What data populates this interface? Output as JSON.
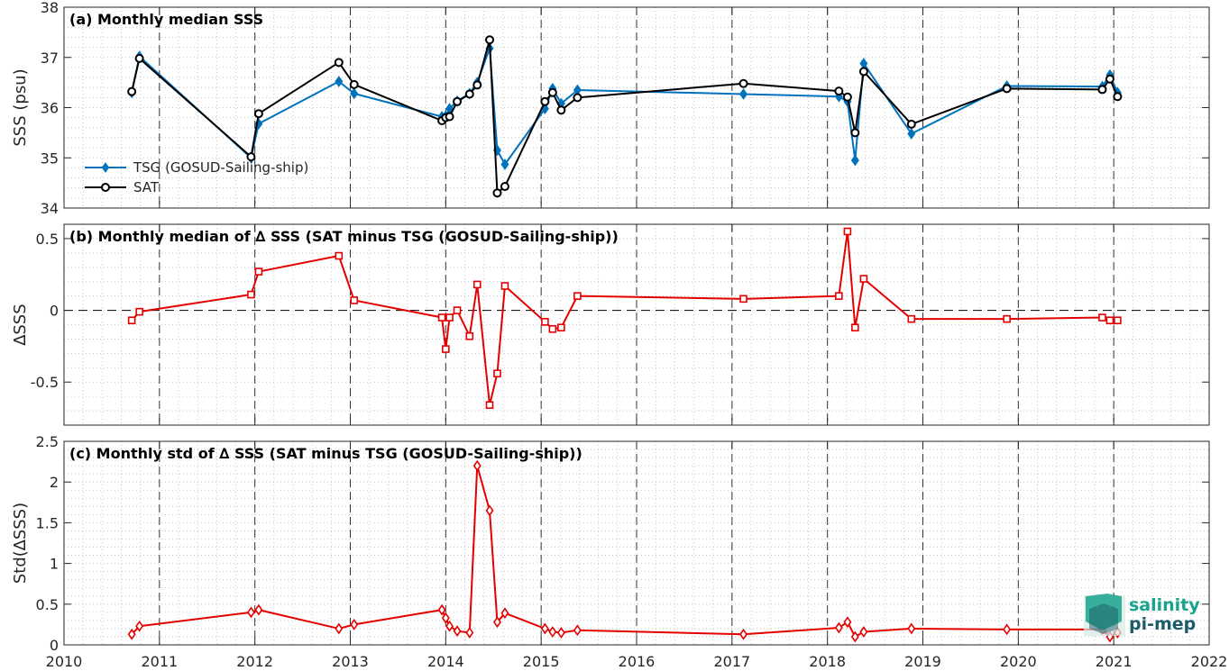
{
  "colors": {
    "tsg": "#0072BD",
    "sat": "#000000",
    "delta": "#E50000",
    "grid_major": "#262626",
    "logo_teal": "#1AA38C",
    "logo_dark": "#1C5B68"
  },
  "logo": {
    "line1": "salinity",
    "line2": "pi-mep"
  },
  "x_axis": {
    "range": [
      2010,
      2022
    ],
    "ticks": [
      2010,
      2011,
      2012,
      2013,
      2014,
      2015,
      2016,
      2017,
      2018,
      2019,
      2020,
      2021,
      2022
    ],
    "tick_labels": [
      "2010",
      "2011",
      "2012",
      "2013",
      "2014",
      "2015",
      "2016",
      "2017",
      "2018",
      "2019",
      "2020",
      "2021",
      "2022"
    ],
    "vertical_dashed_years": [
      2011,
      2012,
      2013,
      2014,
      2015,
      2016,
      2017,
      2018,
      2019,
      2020,
      2021
    ]
  },
  "chart_data": [
    {
      "type": "line",
      "title": "(a) Monthly median SSS",
      "ylabel": "SSS (psu)",
      "ylim": [
        34,
        38
      ],
      "yticks": [
        34,
        35,
        36,
        37,
        38
      ],
      "ytick_labels": [
        "34",
        "35",
        "36",
        "37",
        "38"
      ],
      "grid": "minor dotted",
      "legend_position": "left",
      "series": [
        {
          "name": "TSG (GOSUD-Sailing-ship)",
          "marker": "diamond",
          "color": "#0072BD",
          "x": [
            2010.71,
            2010.79,
            2011.96,
            2012.04,
            2012.88,
            2013.04,
            2013.96,
            2014.0,
            2014.04,
            2014.12,
            2014.25,
            2014.33,
            2014.46,
            2014.54,
            2014.62,
            2015.04,
            2015.12,
            2015.21,
            2015.38,
            2017.12,
            2018.12,
            2018.21,
            2018.29,
            2018.38,
            2018.88,
            2019.88,
            2020.88,
            2020.96,
            2021.04
          ],
          "y": [
            36.3,
            37.02,
            35.0,
            35.68,
            36.52,
            36.28,
            35.82,
            35.83,
            35.98,
            36.13,
            36.28,
            36.5,
            37.18,
            35.15,
            34.87,
            35.98,
            36.38,
            36.08,
            36.35,
            36.27,
            36.22,
            36.12,
            34.95,
            36.88,
            35.48,
            36.43,
            36.42,
            36.65,
            36.3
          ]
        },
        {
          "name": "SAT",
          "marker": "circle",
          "color": "#000000",
          "x": [
            2010.71,
            2010.79,
            2011.96,
            2012.04,
            2012.88,
            2013.04,
            2013.96,
            2014.0,
            2014.04,
            2014.12,
            2014.25,
            2014.33,
            2014.46,
            2014.54,
            2014.62,
            2015.04,
            2015.12,
            2015.21,
            2015.38,
            2017.12,
            2018.12,
            2018.21,
            2018.29,
            2018.38,
            2018.88,
            2019.88,
            2020.88,
            2020.96,
            2021.04
          ],
          "y": [
            36.32,
            36.98,
            35.02,
            35.88,
            36.9,
            36.46,
            35.74,
            35.8,
            35.82,
            36.12,
            36.27,
            36.45,
            37.35,
            34.3,
            34.43,
            36.12,
            36.3,
            35.95,
            36.2,
            36.48,
            36.33,
            36.21,
            35.5,
            36.72,
            35.67,
            36.38,
            36.36,
            36.57,
            36.22
          ]
        }
      ]
    },
    {
      "type": "line",
      "title": "(b) Monthly median of ∆ SSS (SAT minus TSG (GOSUD-Sailing-ship))",
      "ylabel": "∆SSS",
      "ylim": [
        -0.8,
        0.6
      ],
      "yticks": [
        -0.5,
        0,
        0.5
      ],
      "ytick_labels": [
        "-0.5",
        "0",
        "0.5"
      ],
      "zero_line": "dashed",
      "grid": "minor dotted",
      "series": [
        {
          "name": "",
          "marker": "square",
          "color": "#E50000",
          "x": [
            2010.71,
            2010.79,
            2011.96,
            2012.04,
            2012.88,
            2013.04,
            2013.96,
            2014.0,
            2014.04,
            2014.12,
            2014.25,
            2014.33,
            2014.46,
            2014.54,
            2014.62,
            2015.04,
            2015.12,
            2015.21,
            2015.38,
            2017.12,
            2018.12,
            2018.21,
            2018.29,
            2018.38,
            2018.88,
            2019.88,
            2020.88,
            2020.96,
            2021.04
          ],
          "y": [
            -0.07,
            -0.01,
            0.11,
            0.27,
            0.38,
            0.07,
            -0.05,
            -0.27,
            -0.05,
            0.0,
            -0.18,
            0.18,
            -0.66,
            -0.44,
            0.17,
            -0.08,
            -0.13,
            -0.12,
            0.1,
            0.08,
            0.1,
            0.55,
            -0.12,
            0.22,
            -0.06,
            -0.06,
            -0.05,
            -0.07,
            -0.07
          ]
        }
      ]
    },
    {
      "type": "line",
      "title": "(c) Monthly std of ∆ SSS (SAT minus TSG (GOSUD-Sailing-ship))",
      "ylabel": "Std(∆SSS)",
      "ylim": [
        0,
        2.5
      ],
      "yticks": [
        0,
        0.5,
        1,
        1.5,
        2,
        2.5
      ],
      "ytick_labels": [
        "0",
        "0.5",
        "1",
        "1.5",
        "2",
        "2.5"
      ],
      "grid": "minor dotted",
      "series": [
        {
          "name": "",
          "marker": "diamond",
          "color": "#E50000",
          "x": [
            2010.71,
            2010.79,
            2011.96,
            2012.04,
            2012.88,
            2013.04,
            2013.96,
            2014.0,
            2014.04,
            2014.12,
            2014.25,
            2014.33,
            2014.46,
            2014.54,
            2014.62,
            2015.04,
            2015.12,
            2015.21,
            2015.38,
            2017.12,
            2018.12,
            2018.21,
            2018.29,
            2018.38,
            2018.88,
            2019.88,
            2020.88,
            2020.96,
            2021.04
          ],
          "y": [
            0.13,
            0.23,
            0.4,
            0.43,
            0.2,
            0.25,
            0.43,
            0.33,
            0.23,
            0.17,
            0.15,
            2.2,
            1.65,
            0.28,
            0.39,
            0.2,
            0.16,
            0.15,
            0.18,
            0.13,
            0.21,
            0.28,
            0.1,
            0.16,
            0.2,
            0.19,
            0.19,
            0.1,
            0.15
          ]
        }
      ]
    }
  ]
}
